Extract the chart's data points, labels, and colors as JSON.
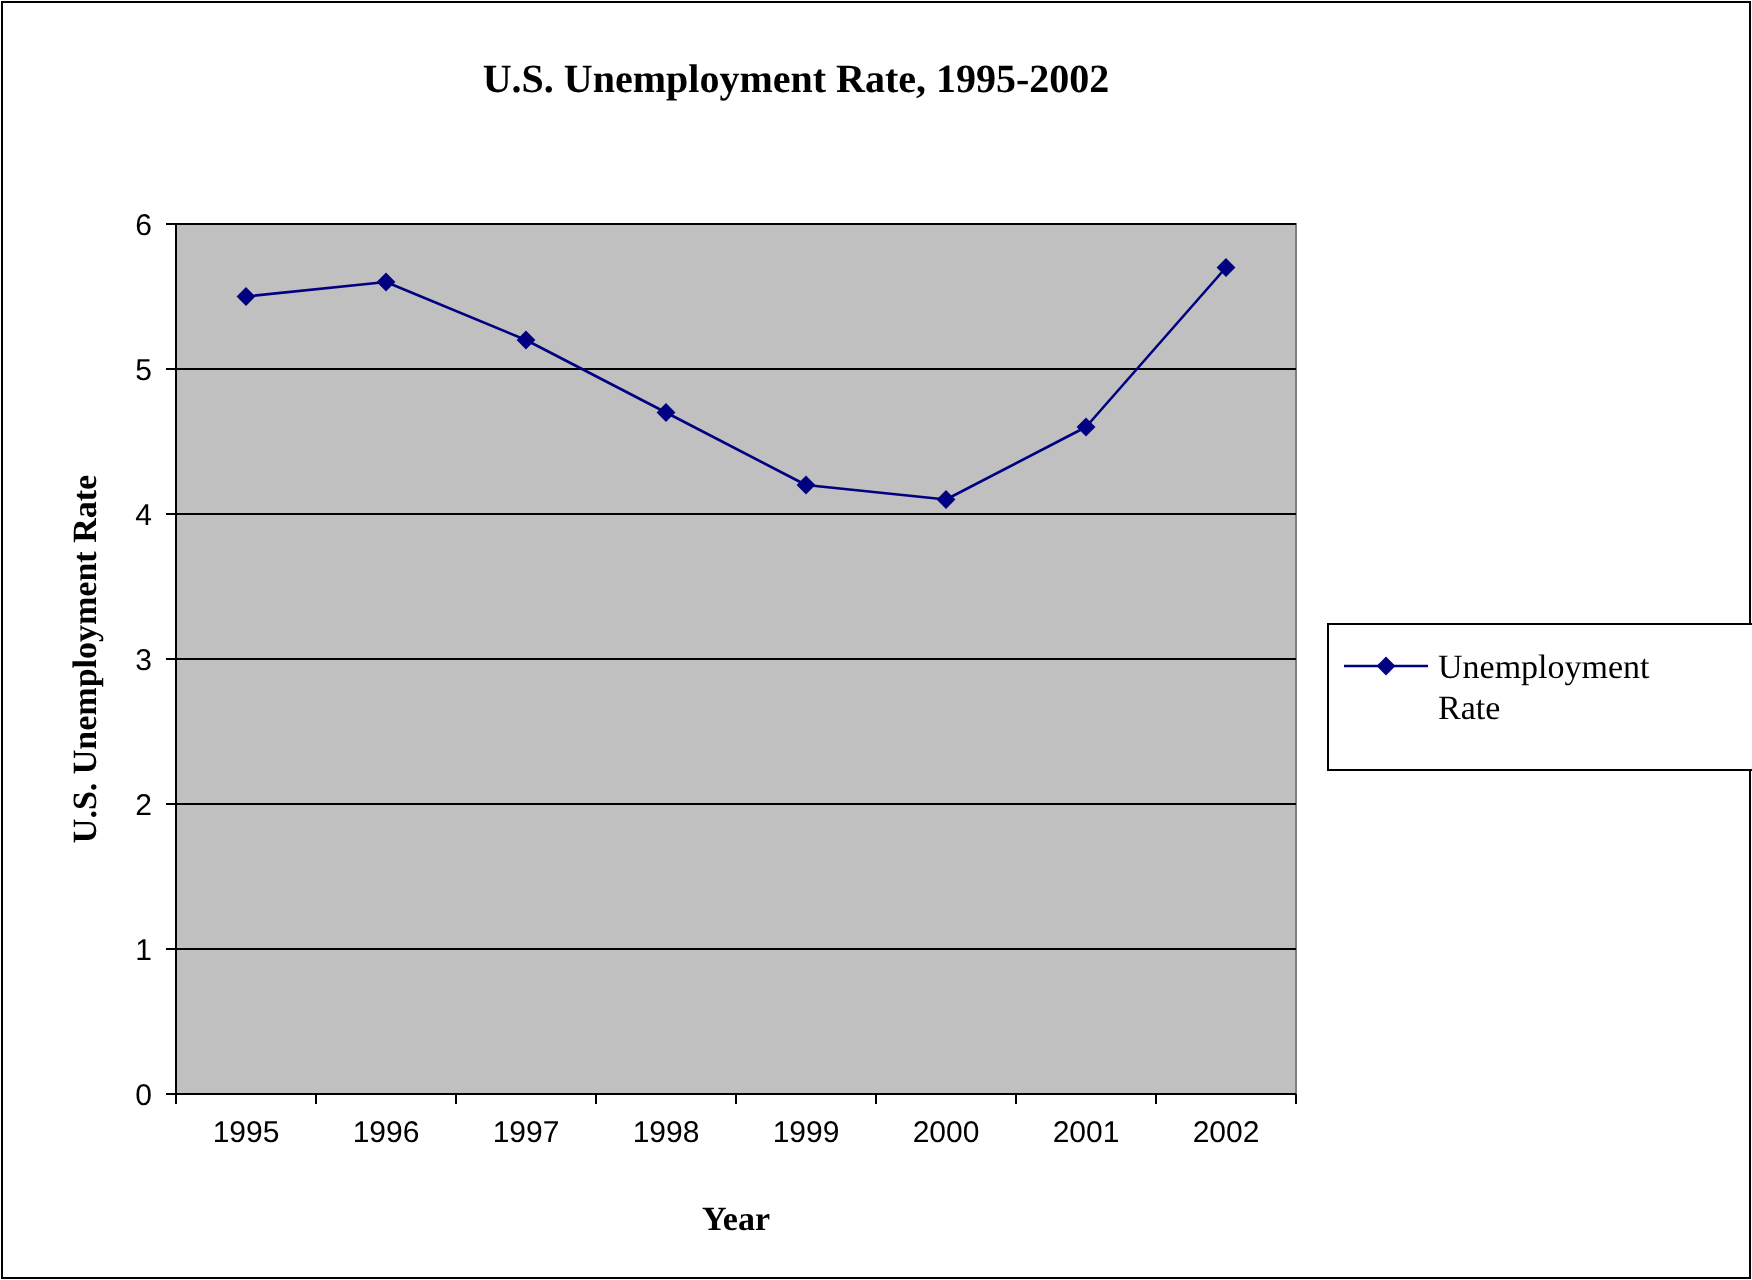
{
  "chart_data": {
    "type": "line",
    "title": "U.S. Unemployment Rate, 1995-2002",
    "xlabel": "Year",
    "ylabel": "U.S. Unemployment Rate",
    "categories": [
      "1995",
      "1996",
      "1997",
      "1998",
      "1999",
      "2000",
      "2001",
      "2002"
    ],
    "series": [
      {
        "name": "Unemployment Rate",
        "color": "#000080",
        "values": [
          5.5,
          5.6,
          5.2,
          4.7,
          4.2,
          4.1,
          4.6,
          5.7
        ]
      }
    ],
    "ylim": [
      0,
      6
    ],
    "yticks": [
      0,
      1,
      2,
      3,
      4,
      5,
      6
    ],
    "grid": "y",
    "legend": "right",
    "marker": "diamond",
    "line_style": "solid"
  }
}
